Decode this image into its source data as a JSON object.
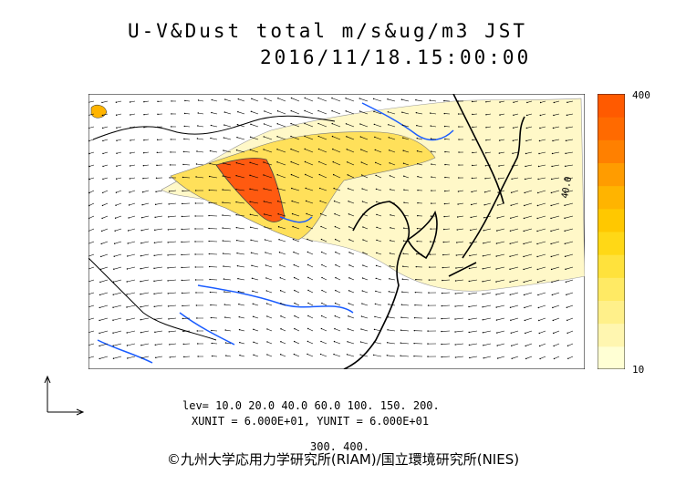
{
  "header": {
    "title": "U-V&Dust total m/s&ug/m3 JST",
    "timestamp": "2016/11/18.15:00:00"
  },
  "colorbar": {
    "max_label": "400",
    "min_label": "10",
    "colors": [
      "#ffffd4",
      "#fff6b0",
      "#fff08a",
      "#ffea64",
      "#ffe23c",
      "#ffd816",
      "#ffc800",
      "#ffb400",
      "#ff9c00",
      "#ff8000",
      "#ff6a00",
      "#ff5a00"
    ]
  },
  "levels_line1": "lev= 10.0 20.0 40.0 60.0 100. 150. 200.",
  "levels_line2": "300. 400.",
  "units_text": "XUNIT = 6.000E+01, YUNIT = 6.000E+01",
  "credit": "©九州大学応用力学研究所(RIAM)/国立環境研究所(NIES)",
  "map": {
    "contour_label": "40.0",
    "land_color": "#000000",
    "river_color": "#1a5cff",
    "dust_high_color": "#ff5a10",
    "dust_mid_color": "#ffe05a",
    "dust_low_color": "#fff8c8"
  }
}
